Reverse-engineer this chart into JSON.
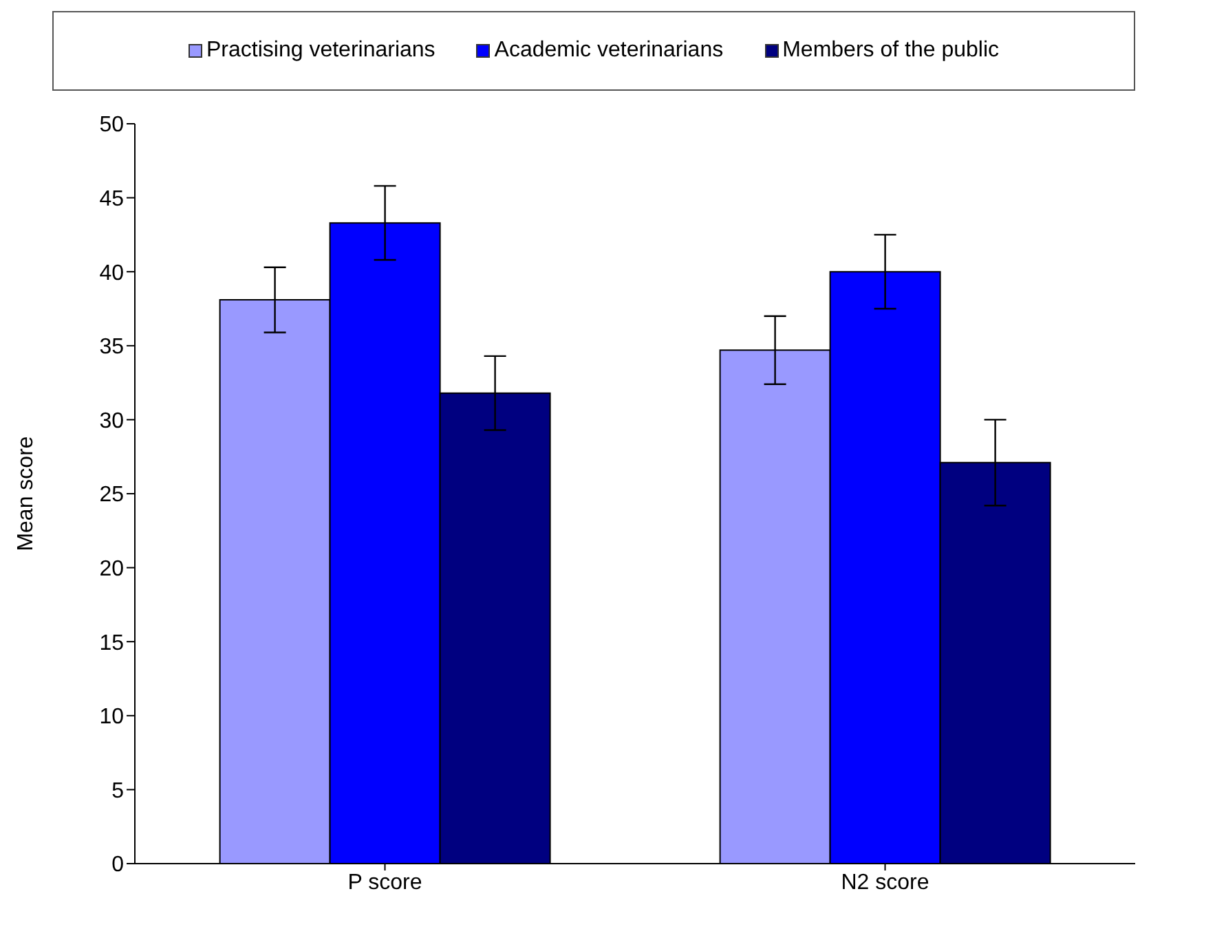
{
  "chart_data": {
    "type": "bar",
    "ylabel": "Mean score",
    "categories": [
      "P score",
      "N2 score"
    ],
    "series": [
      {
        "name": "Practising veterinarians",
        "color": "#9999ff",
        "values": [
          38.1,
          34.7
        ],
        "errors": [
          2.2,
          2.3
        ]
      },
      {
        "name": "Academic veterinarians",
        "color": "#0000ff",
        "values": [
          43.3,
          40.0
        ],
        "errors": [
          2.5,
          2.5
        ]
      },
      {
        "name": "Members of the public",
        "color": "#000080",
        "values": [
          31.8,
          27.1
        ],
        "errors": [
          2.5,
          2.9
        ]
      }
    ],
    "ylim": [
      0,
      50
    ],
    "yticks": [
      0,
      5,
      10,
      15,
      20,
      25,
      30,
      35,
      40,
      45,
      50
    ],
    "grid": false,
    "legend": "top"
  }
}
